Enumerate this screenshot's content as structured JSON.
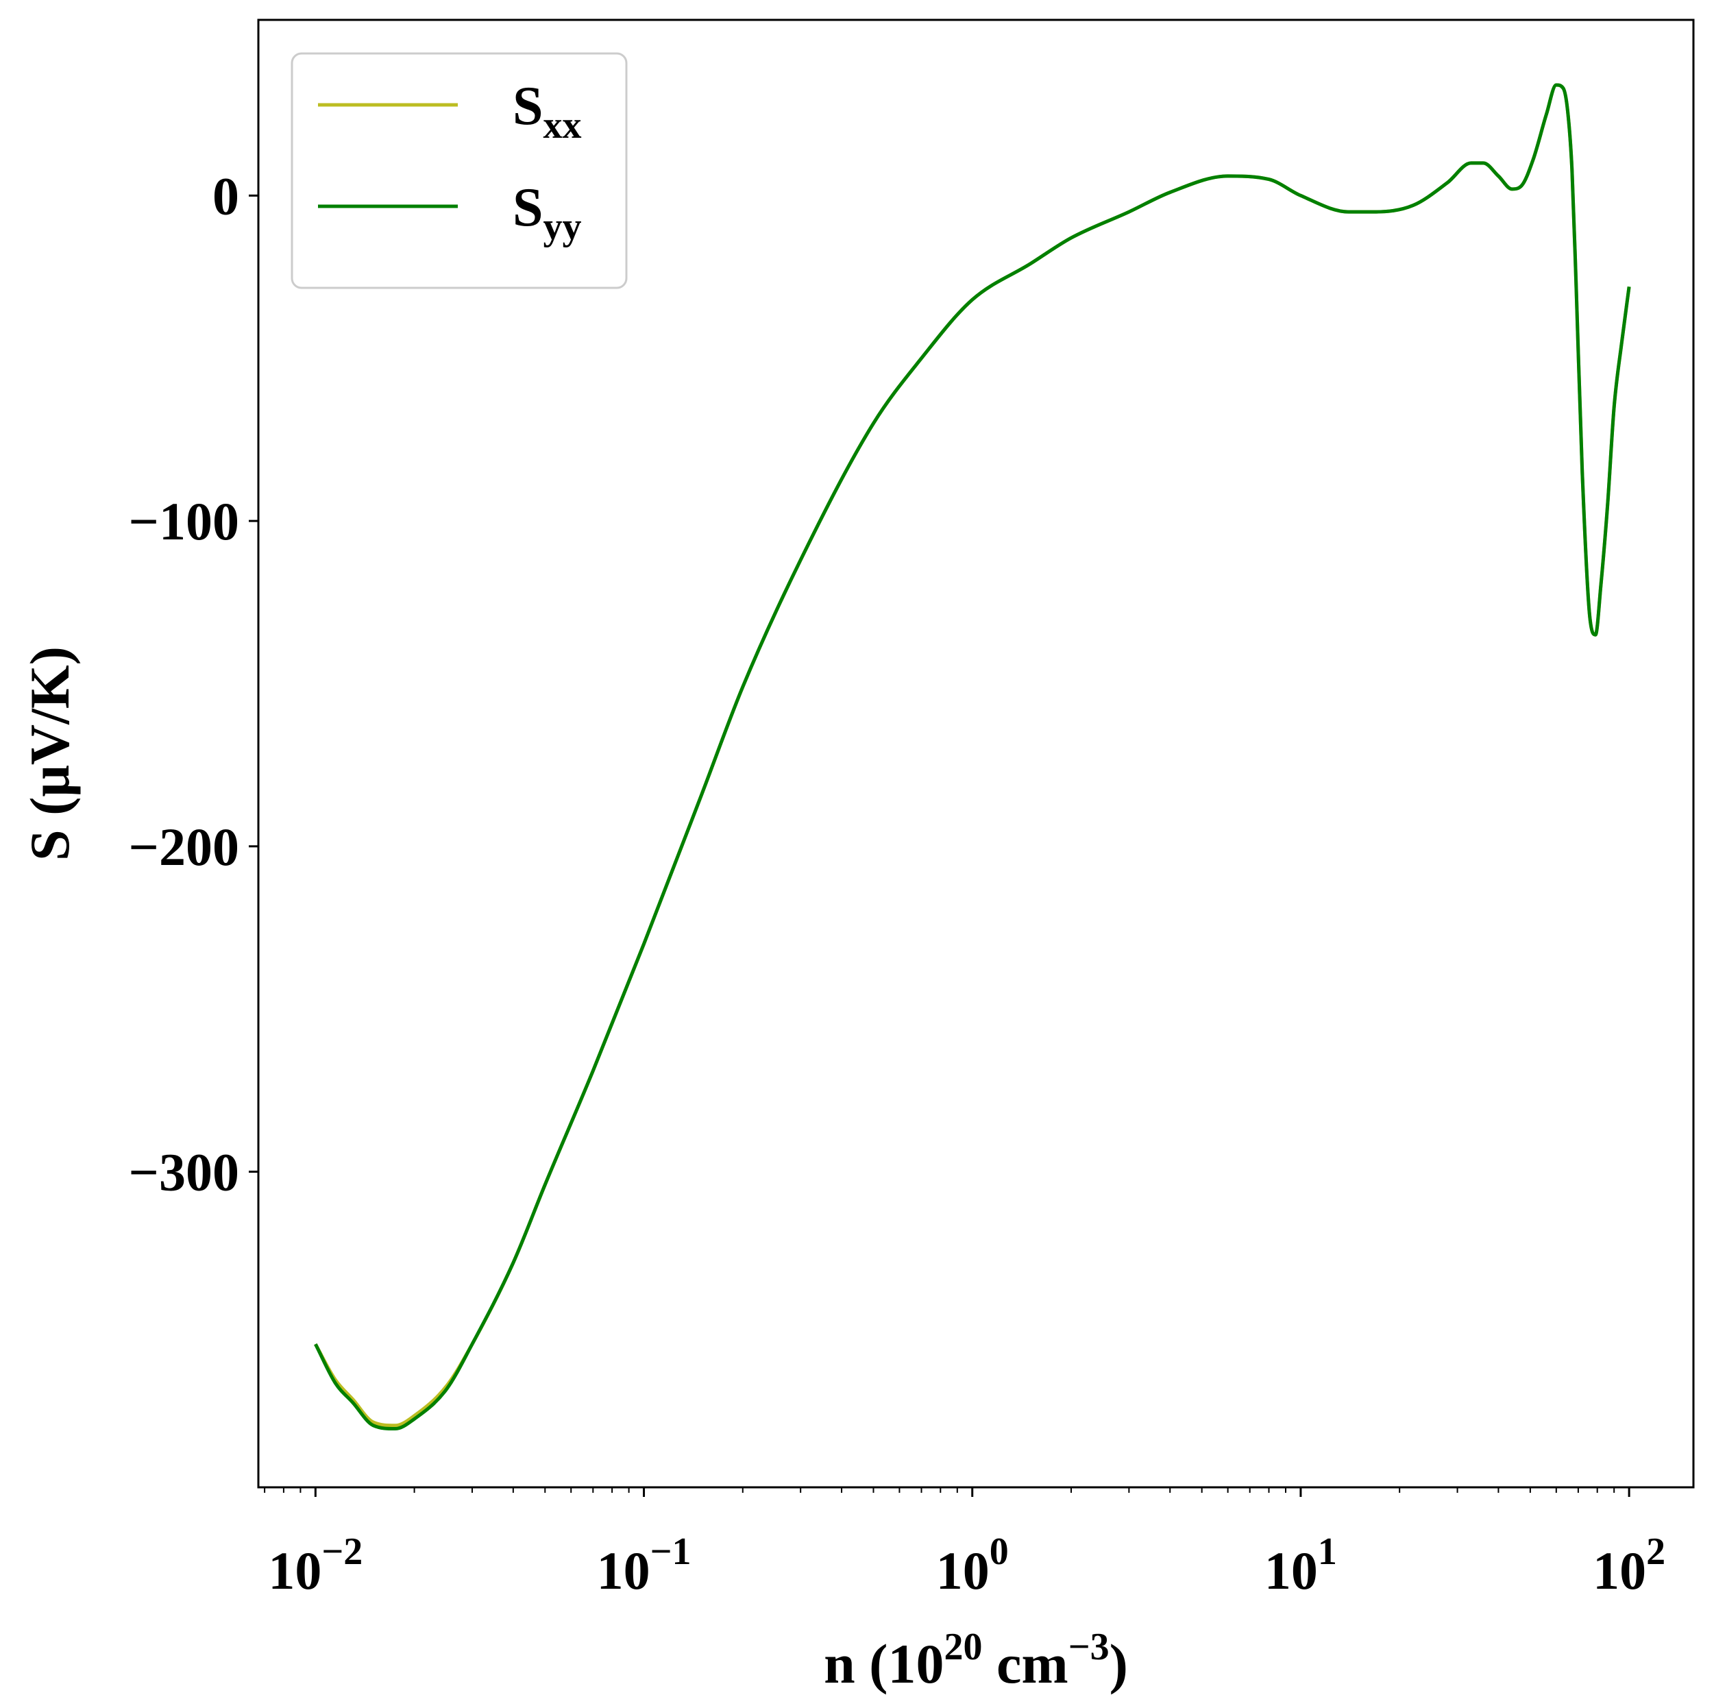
{
  "chart_data": {
    "type": "line",
    "x_scale": "log",
    "xlim": [
      0.0067,
      157
    ],
    "ylim": [
      -397,
      54
    ],
    "xlabel": {
      "pre": "n (10",
      "sup1": "20",
      "mid": " cm",
      "sup2": "−3",
      "post": ")"
    },
    "ylabel": "S (μV/K)",
    "grid": false,
    "legend_position": "top-left",
    "x_ticks": [
      {
        "base": "10",
        "exp": "−2"
      },
      {
        "base": "10",
        "exp": "−1"
      },
      {
        "base": "10",
        "exp": "0"
      },
      {
        "base": "10",
        "exp": "1"
      },
      {
        "base": "10",
        "exp": "2"
      }
    ],
    "y_ticks": [
      "−300",
      "−200",
      "−100",
      "0"
    ],
    "series": [
      {
        "name_main": "S",
        "name_sub": "xx",
        "color": "#bcbd22",
        "x": [
          0.01,
          0.0115,
          0.013,
          0.015,
          0.0175,
          0.02,
          0.025,
          0.03,
          0.04,
          0.05,
          0.07,
          0.1,
          0.15,
          0.2,
          0.3,
          0.5,
          0.7,
          1.0,
          1.5,
          2.0,
          3.0,
          4.0,
          6.0,
          8.0,
          10.0,
          14.0,
          17.0,
          22.0,
          28.0,
          33.0,
          36.0,
          40.0,
          44.0,
          47.0,
          51.0,
          56.0,
          60.0,
          63.0,
          65.0,
          67.0,
          69.0,
          72.0,
          76.0,
          79.0,
          82.0,
          86.0,
          90.0,
          95.0,
          100.0
        ],
        "y": [
          -353,
          -364,
          -370,
          -377,
          -378,
          -375,
          -366,
          -353,
          -328,
          -304,
          -269,
          -230,
          -184,
          -151,
          -112,
          -70,
          -50,
          -32,
          -21,
          -13,
          -5,
          1,
          6,
          5,
          0,
          -5,
          -5,
          -3,
          4,
          10,
          10,
          6,
          2,
          3,
          11,
          25,
          34,
          33,
          26,
          8,
          -28,
          -85,
          -130,
          -135,
          -120,
          -95,
          -65,
          -45,
          -28
        ]
      },
      {
        "name_main": "S",
        "name_sub": "yy",
        "color": "#008000",
        "x": [
          0.01,
          0.0115,
          0.013,
          0.015,
          0.0175,
          0.02,
          0.025,
          0.03,
          0.04,
          0.05,
          0.07,
          0.1,
          0.15,
          0.2,
          0.3,
          0.5,
          0.7,
          1.0,
          1.5,
          2.0,
          3.0,
          4.0,
          6.0,
          8.0,
          10.0,
          14.0,
          17.0,
          22.0,
          28.0,
          33.0,
          36.0,
          40.0,
          44.0,
          47.0,
          51.0,
          56.0,
          60.0,
          63.0,
          65.0,
          67.0,
          69.0,
          72.0,
          76.0,
          79.0,
          82.0,
          86.0,
          90.0,
          95.0,
          100.0
        ],
        "y": [
          -353,
          -365,
          -371,
          -378,
          -379,
          -376,
          -367,
          -353,
          -328,
          -304,
          -269,
          -230,
          -184,
          -151,
          -112,
          -70,
          -50,
          -32,
          -21,
          -13,
          -5,
          1,
          6,
          5,
          0,
          -5,
          -5,
          -3,
          4,
          10,
          10,
          6,
          2,
          3,
          11,
          25,
          34,
          33,
          26,
          8,
          -28,
          -85,
          -130,
          -135,
          -120,
          -95,
          -65,
          -45,
          -28
        ]
      }
    ]
  }
}
